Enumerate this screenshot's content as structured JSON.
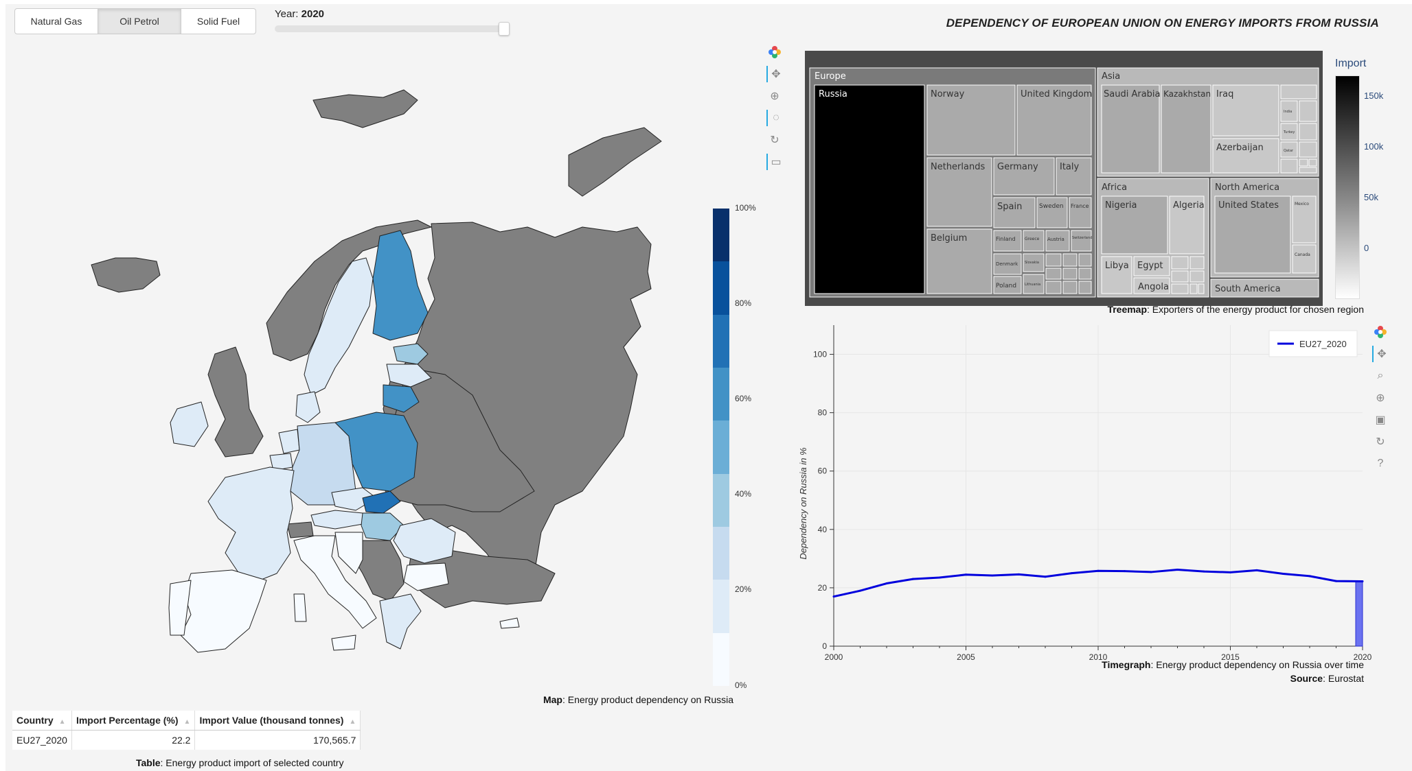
{
  "controls": {
    "product_buttons": [
      {
        "label": "Natural Gas",
        "active": false
      },
      {
        "label": "Oil Petrol",
        "active": true
      },
      {
        "label": "Solid Fuel",
        "active": false
      }
    ],
    "year_label": "Year:",
    "year_value": "2020"
  },
  "title": "DEPENDENCY OF EUROPEAN UNION ON ENERGY IMPORTS FROM RUSSIA",
  "map": {
    "caption_bold": "Map",
    "caption_rest": ": Energy product dependency on Russia",
    "colorbar_ticks": [
      "100%",
      "80%",
      "60%",
      "40%",
      "20%",
      "0%"
    ],
    "colorbar_colors": [
      "#08306b",
      "#08519c",
      "#2171b5",
      "#4292c6",
      "#6baed6",
      "#9ecae1",
      "#c6dbef",
      "#deebf7",
      "#f7fbff"
    ],
    "no_data_color": "#808080"
  },
  "treemap": {
    "caption_bold": "Treemap",
    "caption_rest": ": Exporters of the energy product for chosen region",
    "colorbar_title": "Import",
    "colorbar_ticks": [
      "150k",
      "100k",
      "50k",
      "0"
    ],
    "regions": [
      {
        "name": "Europe",
        "countries": [
          "Russia",
          "Norway",
          "United Kingdom",
          "Netherlands",
          "Germany",
          "Italy",
          "Belgium",
          "Spain",
          "Sweden",
          "France",
          "Finland",
          "Greece",
          "Austria",
          "Switzerland",
          "Denmark",
          "Slovakia",
          "Poland",
          "Lithuania"
        ]
      },
      {
        "name": "Asia",
        "countries": [
          "Saudi Arabia",
          "Kazakhstan",
          "Iraq",
          "Azerbaijan",
          "India",
          "Turkey",
          "Qatar"
        ]
      },
      {
        "name": "Africa",
        "countries": [
          "Nigeria",
          "Algeria",
          "Libya",
          "Egypt",
          "Angola"
        ]
      },
      {
        "name": "North America",
        "countries": [
          "United States",
          "Mexico",
          "Canada"
        ]
      },
      {
        "name": "South America",
        "countries": []
      }
    ]
  },
  "timegraph": {
    "caption_bold": "Timegraph",
    "caption_rest": ": Energy product dependency on Russia over time",
    "source_bold": "Source",
    "source_rest": ": Eurostat"
  },
  "chart_data": {
    "type": "line",
    "title": "",
    "xlabel": "",
    "ylabel": "Dependency on Russia in %",
    "xlim": [
      2000,
      2020
    ],
    "ylim": [
      0,
      110
    ],
    "x_ticks": [
      2000,
      2005,
      2010,
      2015,
      2020
    ],
    "y_ticks": [
      0,
      20,
      40,
      60,
      80,
      100
    ],
    "grid": true,
    "legend_position": "top-right",
    "x": [
      2000,
      2001,
      2002,
      2003,
      2004,
      2005,
      2006,
      2007,
      2008,
      2009,
      2010,
      2011,
      2012,
      2013,
      2014,
      2015,
      2016,
      2017,
      2018,
      2019,
      2020
    ],
    "series": [
      {
        "name": "EU27_2020",
        "color": "#0000dd",
        "values": [
          17,
          19,
          21.5,
          23,
          23.5,
          24.5,
          24.2,
          24.6,
          23.8,
          25,
          25.8,
          25.7,
          25.4,
          26.2,
          25.6,
          25.3,
          26,
          24.8,
          24,
          22.3,
          22.2
        ]
      }
    ],
    "highlight_year": 2020
  },
  "table": {
    "columns": [
      "Country",
      "Import Percentage (%)",
      "Import Value (thousand tonnes)"
    ],
    "rows": [
      {
        "country": "EU27_2020",
        "pct": "22.2",
        "value": "170,565.7"
      }
    ],
    "caption_bold": "Table",
    "caption_rest": ": Energy product import of selected country"
  }
}
